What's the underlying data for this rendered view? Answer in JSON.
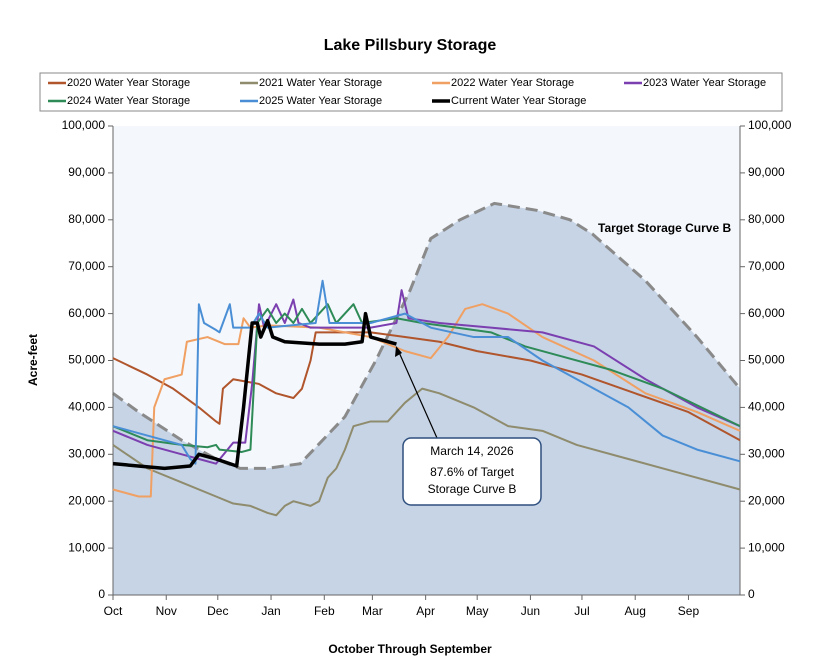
{
  "chart_data": {
    "type": "line",
    "title": "Lake Pillsbury Storage",
    "ylabel": "Acre-feet",
    "xlabel": "October Through September",
    "xlim": [
      0,
      365
    ],
    "xticks": [
      {
        "value": 0,
        "label": "Oct"
      },
      {
        "value": 31,
        "label": "Nov"
      },
      {
        "value": 61,
        "label": "Dec"
      },
      {
        "value": 92,
        "label": "Jan"
      },
      {
        "value": 123,
        "label": "Feb"
      },
      {
        "value": 151,
        "label": "Mar"
      },
      {
        "value": 182,
        "label": "Apr"
      },
      {
        "value": 212,
        "label": "May"
      },
      {
        "value": 243,
        "label": "Jun"
      },
      {
        "value": 273,
        "label": "Jul"
      },
      {
        "value": 304,
        "label": "Aug"
      },
      {
        "value": 335,
        "label": "Sep"
      }
    ],
    "ylim": [
      0,
      100000
    ],
    "yticks": [
      0,
      {
        "value": 10000,
        "label": "10,000"
      },
      {
        "value": 20000,
        "label": "20,000"
      },
      {
        "value": 30000,
        "label": "30,000"
      },
      {
        "value": 40000,
        "label": "40,000"
      },
      {
        "value": 50000,
        "label": "50,000"
      },
      {
        "value": 60000,
        "label": "60,000"
      },
      {
        "value": 70000,
        "label": "70,000"
      },
      {
        "value": 80000,
        "label": "80,000"
      },
      {
        "value": 90000,
        "label": "90,000"
      },
      {
        "value": 100000,
        "label": "100,000"
      }
    ],
    "y2lim": [
      0,
      100000
    ],
    "y2ticks": [
      0,
      {
        "value": 10000,
        "label": "10,000"
      },
      {
        "value": 20000,
        "label": "20,000"
      },
      {
        "value": 30000,
        "label": "30,000"
      },
      {
        "value": 40000,
        "label": "40,000"
      },
      {
        "value": 50000,
        "label": "50,000"
      },
      {
        "value": 60000,
        "label": "60,000"
      },
      {
        "value": 70000,
        "label": "70,000"
      },
      {
        "value": 80000,
        "label": "80,000"
      },
      {
        "value": 90000,
        "label": "90,000"
      },
      {
        "value": 100000,
        "label": "100,000"
      }
    ],
    "target": {
      "fill": "#c6d4e6",
      "color": "#8a8a8a",
      "x": [
        0,
        15,
        40,
        60,
        74,
        90,
        109,
        135,
        153,
        173,
        185,
        202,
        222,
        247,
        266,
        279,
        310,
        340,
        365
      ],
      "values": [
        43000,
        39000,
        33000,
        29000,
        27000,
        27000,
        28000,
        38000,
        50000,
        65000,
        76000,
        80000,
        83500,
        82000,
        80000,
        77000,
        67000,
        55000,
        44000
      ]
    },
    "annotations": [
      "Target Storage Curve B"
    ],
    "callout": [
      "March 14, 2026",
      "87.6% of Target",
      "Storage Curve B"
    ],
    "series": [
      {
        "name": "2020 Water Year Storage",
        "color": "#b0552c",
        "x": [
          0,
          20,
          35,
          50,
          60,
          62,
          64,
          70,
          85,
          95,
          105,
          110,
          115,
          118,
          150,
          170,
          190,
          212,
          243,
          273,
          304,
          335,
          365
        ],
        "values": [
          50500,
          47000,
          44000,
          40000,
          37000,
          36500,
          44000,
          46000,
          45000,
          43000,
          42000,
          44000,
          50000,
          56000,
          56000,
          55000,
          54000,
          52000,
          50000,
          47000,
          43000,
          39000,
          33000
        ]
      },
      {
        "name": "2021 Water Year Storage",
        "color": "#8f8b6d",
        "x": [
          0,
          20,
          40,
          60,
          70,
          80,
          90,
          95,
          100,
          105,
          115,
          120,
          125,
          130,
          135,
          140,
          150,
          160,
          170,
          180,
          190,
          210,
          230,
          250,
          270,
          300,
          330,
          365
        ],
        "values": [
          32000,
          27000,
          24000,
          21000,
          19500,
          19000,
          17500,
          17000,
          19000,
          20000,
          19000,
          20000,
          25000,
          27000,
          31000,
          36000,
          37000,
          37000,
          41000,
          44000,
          43000,
          40000,
          36000,
          35000,
          32000,
          29000,
          26000,
          22500
        ]
      },
      {
        "name": "2022 Water Year Storage",
        "color": "#f0a063",
        "x": [
          0,
          15,
          22,
          24,
          30,
          40,
          43,
          55,
          65,
          73,
          76,
          80,
          90,
          120,
          150,
          170,
          185,
          195,
          205,
          215,
          230,
          250,
          280,
          310,
          340,
          365
        ],
        "values": [
          22500,
          21000,
          21000,
          40000,
          46000,
          47000,
          54000,
          55000,
          53500,
          53500,
          59000,
          57000,
          57500,
          57000,
          55000,
          52000,
          50500,
          55000,
          61000,
          62000,
          60000,
          55000,
          50000,
          43000,
          39000,
          35000
        ]
      },
      {
        "name": "2023 Water Year Storage",
        "color": "#7b3fb0",
        "x": [
          0,
          20,
          40,
          50,
          60,
          70,
          77,
          81,
          85,
          88,
          95,
          100,
          105,
          108,
          115,
          150,
          165,
          168,
          172,
          190,
          220,
          250,
          280,
          310,
          340,
          365
        ],
        "values": [
          35000,
          32000,
          30000,
          29000,
          28000,
          32500,
          32500,
          45000,
          62000,
          57000,
          62000,
          58000,
          63000,
          58000,
          57000,
          57000,
          58000,
          65000,
          59000,
          58000,
          57000,
          56000,
          53000,
          46000,
          40000,
          36000
        ]
      },
      {
        "name": "2024 Water Year Storage",
        "color": "#2e8b57",
        "x": [
          0,
          20,
          40,
          55,
          60,
          62,
          75,
          80,
          84,
          90,
          95,
          100,
          105,
          110,
          115,
          125,
          130,
          140,
          145,
          165,
          180,
          200,
          220,
          240,
          260,
          290,
          320,
          365
        ],
        "values": [
          36000,
          33000,
          32000,
          31500,
          32000,
          31000,
          30500,
          31000,
          58000,
          61000,
          58000,
          60000,
          58000,
          61000,
          58000,
          62000,
          58000,
          62000,
          58000,
          59000,
          58000,
          57000,
          56000,
          53000,
          51000,
          48000,
          44000,
          36000
        ]
      },
      {
        "name": "2025 Water Year Storage",
        "color": "#4a8fd6",
        "x": [
          0,
          20,
          40,
          45,
          48,
          50,
          53,
          60,
          62,
          68,
          70,
          80,
          85,
          90,
          118,
          122,
          126,
          150,
          170,
          185,
          210,
          230,
          250,
          270,
          300,
          320,
          340,
          365
        ],
        "values": [
          36000,
          34000,
          32000,
          29000,
          28000,
          62000,
          58000,
          56500,
          56000,
          62000,
          57000,
          57000,
          60000,
          57000,
          58000,
          67000,
          58000,
          58000,
          60000,
          57000,
          55000,
          55000,
          50000,
          46000,
          40000,
          34000,
          31000,
          28500
        ]
      },
      {
        "name": "Current Water Year Storage",
        "color": "#000000",
        "x": [
          0,
          30,
          45,
          50,
          60,
          72,
          76,
          81,
          84,
          86,
          90,
          93,
          100,
          120,
          135,
          145,
          147,
          150,
          160,
          165
        ],
        "values": [
          28000,
          27000,
          27500,
          30000,
          29000,
          27500,
          40000,
          58000,
          58000,
          55000,
          58500,
          55000,
          54000,
          53500,
          53500,
          54000,
          60000,
          55000,
          54000,
          53500
        ]
      }
    ]
  }
}
